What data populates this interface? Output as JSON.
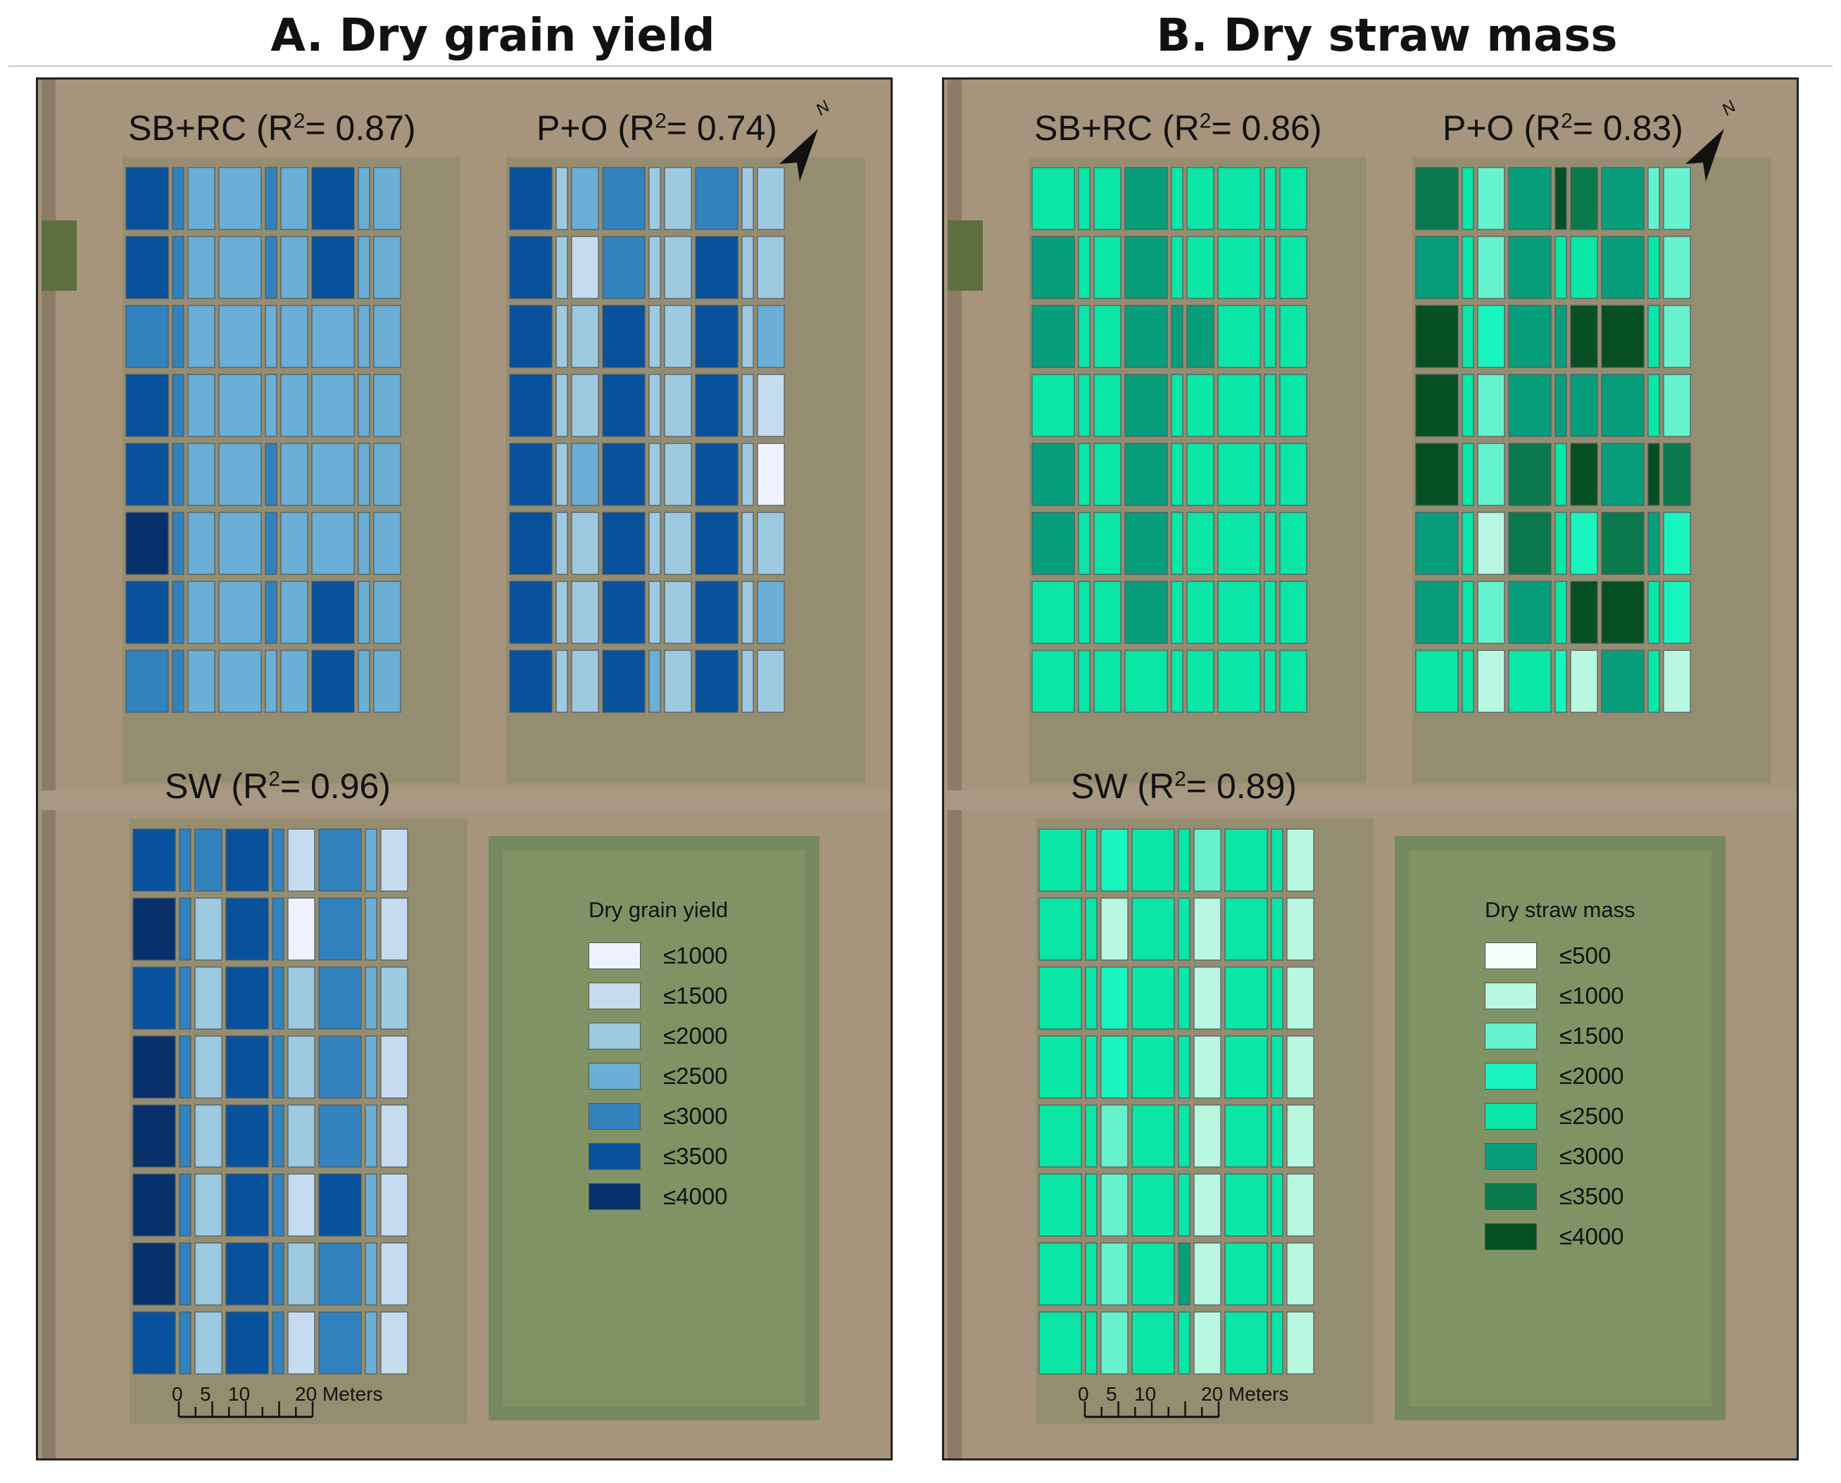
{
  "panels": [
    {
      "id": "A",
      "title": "A. Dry grain yield",
      "blocks": [
        {
          "label_prefix": "SB+RC (R",
          "sup": "2",
          "label_suffix": "= 0.87)",
          "rows": [
            [
              5,
              4,
              3,
              3,
              4,
              3,
              5,
              3,
              3
            ],
            [
              5,
              4,
              3,
              3,
              4,
              3,
              5,
              3,
              3
            ],
            [
              4,
              4,
              3,
              3,
              3,
              3,
              3,
              3,
              3
            ],
            [
              5,
              4,
              3,
              3,
              3,
              3,
              3,
              3,
              3
            ],
            [
              5,
              4,
              3,
              3,
              4,
              3,
              3,
              3,
              3
            ],
            [
              6,
              4,
              3,
              3,
              4,
              3,
              3,
              3,
              3
            ],
            [
              5,
              4,
              3,
              3,
              4,
              3,
              5,
              3,
              3
            ],
            [
              4,
              4,
              3,
              3,
              3,
              3,
              5,
              3,
              3
            ]
          ]
        },
        {
          "label_prefix": "P+O (R",
          "sup": "2",
          "label_suffix": "= 0.74)",
          "rows": [
            [
              5,
              2,
              3,
              4,
              2,
              2,
              4,
              2,
              2
            ],
            [
              5,
              2,
              1,
              4,
              2,
              2,
              5,
              2,
              2
            ],
            [
              5,
              2,
              2,
              5,
              2,
              2,
              5,
              2,
              3
            ],
            [
              5,
              2,
              2,
              5,
              2,
              2,
              5,
              2,
              1
            ],
            [
              5,
              2,
              3,
              5,
              2,
              2,
              5,
              2,
              0
            ],
            [
              5,
              2,
              2,
              5,
              2,
              2,
              5,
              2,
              2
            ],
            [
              5,
              2,
              2,
              5,
              2,
              2,
              5,
              2,
              3
            ],
            [
              5,
              2,
              2,
              5,
              3,
              2,
              5,
              2,
              2
            ]
          ]
        },
        {
          "label_prefix": "SW (R",
          "sup": "2",
          "label_suffix": "= 0.96)",
          "rows": [
            [
              5,
              4,
              4,
              5,
              4,
              1,
              4,
              3,
              1
            ],
            [
              6,
              4,
              2,
              5,
              4,
              0,
              4,
              3,
              1
            ],
            [
              5,
              4,
              2,
              5,
              4,
              2,
              4,
              3,
              2
            ],
            [
              6,
              4,
              2,
              5,
              4,
              2,
              4,
              3,
              1
            ],
            [
              6,
              4,
              2,
              5,
              4,
              2,
              4,
              3,
              1
            ],
            [
              6,
              4,
              2,
              5,
              4,
              1,
              5,
              3,
              1
            ],
            [
              6,
              4,
              2,
              5,
              4,
              2,
              4,
              3,
              1
            ],
            [
              5,
              4,
              2,
              5,
              4,
              1,
              4,
              3,
              1
            ]
          ]
        }
      ],
      "legend": {
        "title": "Dry grain yield",
        "items": [
          {
            "label": "≤1000",
            "color": "#eff3ff"
          },
          {
            "label": "≤1500",
            "color": "#c6dbef"
          },
          {
            "label": "≤2000",
            "color": "#9ecae1"
          },
          {
            "label": "≤2500",
            "color": "#6baed6"
          },
          {
            "label": "≤3000",
            "color": "#3182bd"
          },
          {
            "label": "≤3500",
            "color": "#08519c"
          },
          {
            "label": "≤4000",
            "color": "#08306b"
          }
        ]
      },
      "scale": {
        "labels": [
          "0",
          "5",
          "10",
          "20 Meters"
        ]
      },
      "north_label": "N"
    },
    {
      "id": "B",
      "title": "B. Dry straw mass",
      "blocks": [
        {
          "label_prefix": "SB+RC (R",
          "sup": "2",
          "label_suffix": "= 0.86)",
          "rows": [
            [
              4,
              4,
              4,
              5,
              4,
              4,
              4,
              4,
              4
            ],
            [
              5,
              4,
              4,
              5,
              4,
              4,
              4,
              4,
              4
            ],
            [
              5,
              4,
              4,
              5,
              5,
              5,
              4,
              4,
              4
            ],
            [
              4,
              4,
              4,
              5,
              4,
              4,
              4,
              4,
              4
            ],
            [
              5,
              4,
              4,
              5,
              4,
              4,
              4,
              4,
              4
            ],
            [
              5,
              4,
              4,
              5,
              4,
              4,
              4,
              4,
              4
            ],
            [
              4,
              4,
              4,
              5,
              4,
              4,
              4,
              4,
              4
            ],
            [
              4,
              4,
              4,
              4,
              4,
              4,
              4,
              4,
              4
            ]
          ]
        },
        {
          "label_prefix": "P+O (R",
          "sup": "2",
          "label_suffix": "= 0.83)",
          "rows": [
            [
              6,
              4,
              2,
              5,
              7,
              6,
              5,
              2,
              2
            ],
            [
              5,
              4,
              2,
              5,
              4,
              4,
              5,
              4,
              2
            ],
            [
              7,
              4,
              3,
              5,
              5,
              7,
              7,
              4,
              2
            ],
            [
              7,
              4,
              2,
              5,
              5,
              5,
              5,
              4,
              2
            ],
            [
              7,
              4,
              2,
              6,
              4,
              7,
              5,
              7,
              6
            ],
            [
              5,
              4,
              1,
              6,
              4,
              3,
              6,
              5,
              3
            ],
            [
              5,
              4,
              2,
              5,
              4,
              7,
              7,
              4,
              3
            ],
            [
              4,
              4,
              1,
              4,
              3,
              1,
              5,
              4,
              1
            ]
          ]
        },
        {
          "label_prefix": "SW (R",
          "sup": "2",
          "label_suffix": "= 0.89)",
          "rows": [
            [
              4,
              4,
              3,
              4,
              4,
              2,
              4,
              4,
              1
            ],
            [
              4,
              4,
              1,
              4,
              4,
              1,
              4,
              4,
              1
            ],
            [
              4,
              4,
              3,
              4,
              4,
              1,
              4,
              4,
              1
            ],
            [
              4,
              4,
              3,
              4,
              4,
              1,
              4,
              4,
              1
            ],
            [
              4,
              4,
              2,
              4,
              4,
              1,
              4,
              4,
              1
            ],
            [
              4,
              4,
              2,
              4,
              4,
              1,
              4,
              4,
              1
            ],
            [
              4,
              4,
              2,
              4,
              5,
              1,
              4,
              4,
              1
            ],
            [
              4,
              4,
              2,
              4,
              4,
              1,
              4,
              4,
              1
            ]
          ]
        }
      ],
      "legend": {
        "title": "Dry straw mass",
        "items": [
          {
            "label": "≤500",
            "color": "#f4fffb"
          },
          {
            "label": "≤1000",
            "color": "#b8f8e0"
          },
          {
            "label": "≤1500",
            "color": "#66f2cc"
          },
          {
            "label": "≤2000",
            "color": "#19f5bf"
          },
          {
            "label": "≤2500",
            "color": "#09e6a6"
          },
          {
            "label": "≤3000",
            "color": "#079f7b"
          },
          {
            "label": "≤3500",
            "color": "#0a7a4e"
          },
          {
            "label": "≤4000",
            "color": "#054f23"
          }
        ]
      },
      "scale": {
        "labels": [
          "0",
          "5",
          "10",
          "20 Meters"
        ]
      },
      "north_label": "N"
    }
  ]
}
